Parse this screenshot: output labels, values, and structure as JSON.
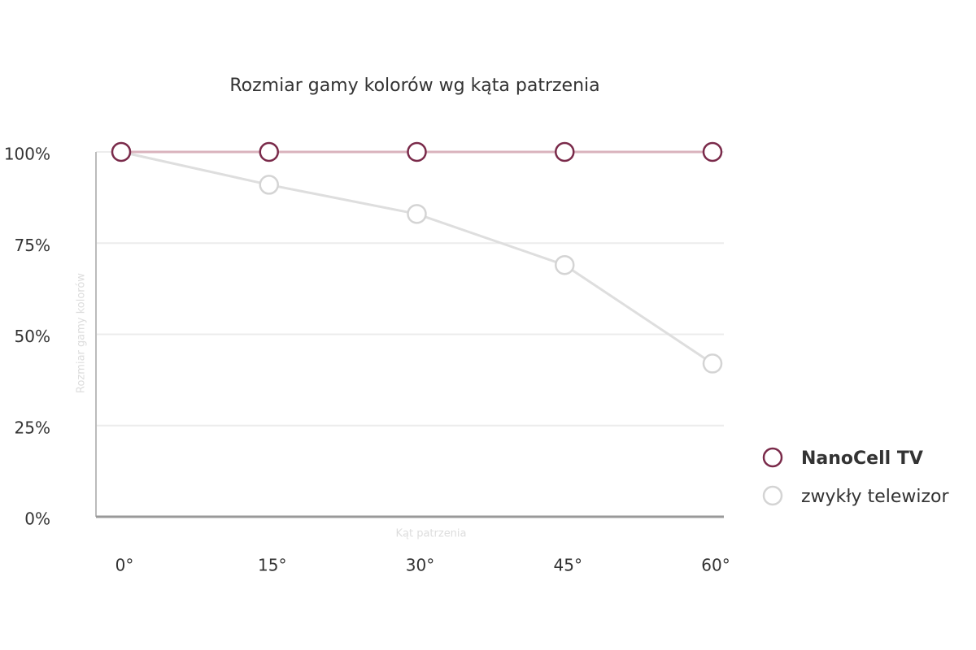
{
  "chart_data": {
    "type": "line",
    "title": "Rozmiar gamy kolorów wg kąta patrzenia",
    "x_label": "Kąt patrzenia",
    "y_label": "Rozmiar gamy kolorów",
    "categories": [
      "0°",
      "15°",
      "30°",
      "45°",
      "60°"
    ],
    "series": [
      {
        "name": "NanoCell TV",
        "color": "#7a2a4a",
        "values": [
          100,
          100,
          100,
          100,
          100
        ]
      },
      {
        "name": "zwykły telewizor",
        "color": "#d4d4d4",
        "values": [
          100,
          91,
          83,
          69,
          42
        ]
      }
    ],
    "ylim": [
      0,
      100
    ],
    "yticks": [
      {
        "value": 0,
        "label": "0%"
      },
      {
        "value": 25,
        "label": "25%"
      },
      {
        "value": 50,
        "label": "50%"
      },
      {
        "value": 75,
        "label": "75%"
      },
      {
        "value": 100,
        "label": "100%"
      }
    ],
    "grid": true,
    "legend": "right"
  }
}
